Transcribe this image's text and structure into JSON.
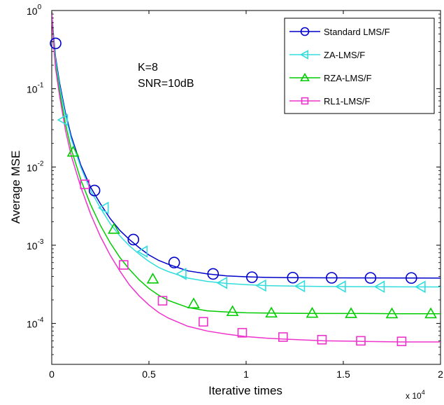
{
  "chart_data": {
    "type": "line",
    "title": "",
    "xlabel": "Iterative times",
    "ylabel": "Average MSE",
    "x_multiplier": "x 10",
    "x_multiplier_exp": "4",
    "xlim": [
      0,
      20000
    ],
    "ylim": [
      3e-05,
      1
    ],
    "yscale": "log",
    "grid": false,
    "x_ticks": [
      {
        "value": 0,
        "label": "0"
      },
      {
        "value": 5000,
        "label": "0.5"
      },
      {
        "value": 10000,
        "label": "1"
      },
      {
        "value": 15000,
        "label": "1.5"
      },
      {
        "value": 20000,
        "label": "2"
      }
    ],
    "y_ticks": [
      {
        "value": 1,
        "base": "10",
        "exp": "0"
      },
      {
        "value": 0.1,
        "base": "10",
        "exp": "-1"
      },
      {
        "value": 0.01,
        "base": "10",
        "exp": "-2"
      },
      {
        "value": 0.001,
        "base": "10",
        "exp": "-3"
      },
      {
        "value": 0.0001,
        "base": "10",
        "exp": "-4"
      }
    ],
    "annotations": [
      "K=8",
      "SNR=10dB"
    ],
    "legend_position": "top-right",
    "series": [
      {
        "name": "Standard LMS/F",
        "color": "#0000cc",
        "marker": "circle",
        "x": [
          0,
          100,
          200,
          400,
          700,
          1000,
          1500,
          2000,
          2500,
          3000,
          3500,
          4000,
          4500,
          5000,
          5500,
          6000,
          7000,
          8000,
          9000,
          10000,
          11000,
          12000,
          14000,
          16000,
          18000,
          20000
        ],
        "y": [
          0.95,
          0.45,
          0.25,
          0.12,
          0.05,
          0.025,
          0.0105,
          0.0055,
          0.0034,
          0.0022,
          0.00155,
          0.00118,
          0.00093,
          0.00075,
          0.00064,
          0.00057,
          0.00047,
          0.00043,
          0.000405,
          0.000395,
          0.000388,
          0.000385,
          0.000383,
          0.000382,
          0.000381,
          0.00038
        ],
        "marker_x": [
          200,
          2200,
          4200,
          6300,
          8300,
          10300,
          12400,
          14400,
          16400,
          18500
        ],
        "marker_y": [
          0.38,
          0.005,
          0.00118,
          0.0006,
          0.00043,
          0.00039,
          0.000385,
          0.000383,
          0.000382,
          0.000381
        ]
      },
      {
        "name": "ZA-LMS/F",
        "color": "#33dddd",
        "marker": "triangle-left",
        "x": [
          0,
          100,
          200,
          400,
          700,
          1000,
          1500,
          2000,
          2500,
          3000,
          3500,
          4000,
          4500,
          5000,
          5500,
          6000,
          7000,
          8000,
          9000,
          10000,
          11000,
          12000,
          14000,
          16000,
          18000,
          20000
        ],
        "y": [
          0.95,
          0.42,
          0.23,
          0.11,
          0.046,
          0.023,
          0.0098,
          0.005,
          0.003,
          0.0019,
          0.00132,
          0.00098,
          0.00077,
          0.00062,
          0.00052,
          0.00046,
          0.00038,
          0.000345,
          0.000325,
          0.000313,
          0.000305,
          0.000301,
          0.000297,
          0.000295,
          0.000294,
          0.000293
        ],
        "marker_x": [
          600,
          2700,
          4700,
          6700,
          8800,
          10800,
          12800,
          14900,
          16900,
          19000
        ],
        "marker_y": [
          0.04,
          0.003,
          0.00083,
          0.00043,
          0.00033,
          0.000305,
          0.0003,
          0.000296,
          0.000295,
          0.000294
        ]
      },
      {
        "name": "RZA-LMS/F",
        "color": "#00cc00",
        "marker": "triangle-up",
        "x": [
          0,
          100,
          200,
          400,
          700,
          1000,
          1500,
          2000,
          2500,
          3000,
          3500,
          4000,
          4500,
          5000,
          5500,
          6000,
          7000,
          8000,
          9000,
          10000,
          11000,
          12000,
          14000,
          16000,
          18000,
          20000
        ],
        "y": [
          0.95,
          0.38,
          0.2,
          0.095,
          0.036,
          0.017,
          0.0068,
          0.0033,
          0.0018,
          0.00108,
          0.0007,
          0.00049,
          0.00036,
          0.00028,
          0.00023,
          0.000197,
          0.00016,
          0.000145,
          0.00014,
          0.000137,
          0.000136,
          0.000135,
          0.000134,
          0.000134,
          0.000133,
          0.000133
        ],
        "marker_x": [
          1100,
          3200,
          5200,
          7300,
          9300,
          11300,
          13400,
          15400,
          17500,
          19500
        ],
        "marker_y": [
          0.0155,
          0.0016,
          0.00037,
          0.000178,
          0.000142,
          0.000136,
          0.000135,
          0.000134,
          0.000133,
          0.000133
        ]
      },
      {
        "name": "RL1-LMS/F",
        "color": "#ee33cc",
        "marker": "square",
        "x": [
          0,
          100,
          200,
          400,
          700,
          1000,
          1500,
          2000,
          2500,
          3000,
          3500,
          4000,
          4500,
          5000,
          5500,
          6000,
          7000,
          8000,
          9000,
          10000,
          11000,
          12000,
          14000,
          16000,
          18000,
          20000
        ],
        "y": [
          0.95,
          0.35,
          0.18,
          0.082,
          0.03,
          0.014,
          0.0055,
          0.0025,
          0.0013,
          0.00075,
          0.00047,
          0.00031,
          0.000225,
          0.000172,
          0.000138,
          0.000117,
          9.2e-05,
          8e-05,
          7.3e-05,
          6.8e-05,
          6.5e-05,
          6.3e-05,
          6e-05,
          5.9e-05,
          5.8e-05,
          5.8e-05
        ],
        "marker_x": [
          1700,
          3700,
          5700,
          7800,
          9800,
          11900,
          13900,
          15900,
          18000
        ],
        "marker_y": [
          0.006,
          0.00056,
          0.000195,
          0.000105,
          7.6e-05,
          6.7e-05,
          6.2e-05,
          6e-05,
          5.9e-05
        ]
      }
    ]
  }
}
